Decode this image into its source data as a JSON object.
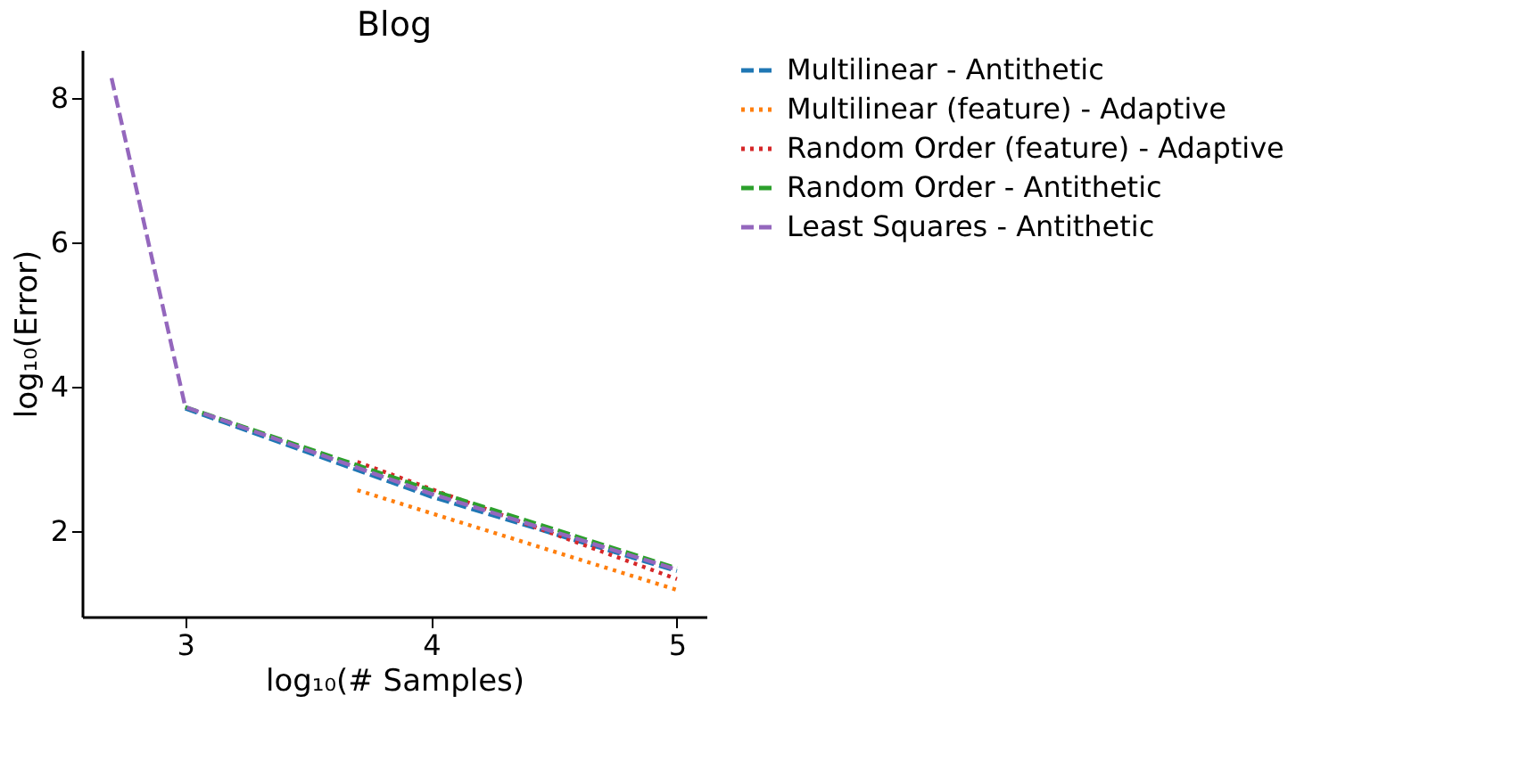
{
  "chart_data": {
    "type": "line",
    "title": "Blog",
    "xlabel": "log₁₀(# Samples)",
    "ylabel": "log₁₀(Error)",
    "xlim": [
      2.58,
      5.12
    ],
    "ylim": [
      0.82,
      8.66
    ],
    "xticks": [
      3,
      4,
      5
    ],
    "yticks": [
      2,
      4,
      6,
      8
    ],
    "grid": false,
    "legend": "right",
    "marker": "none",
    "series": [
      {
        "name": "Multilinear - Antithetic",
        "color": "#1f77b4",
        "line_style": "dashed",
        "x": [
          3,
          4,
          5
        ],
        "values": [
          3.7,
          2.48,
          1.45
        ]
      },
      {
        "name": "Multilinear (feature) - Adaptive",
        "color": "#ff7f0e",
        "line_style": "dotted",
        "x": [
          3.7,
          5
        ],
        "values": [
          2.57,
          1.19
        ]
      },
      {
        "name": "Random Order (feature) - Adaptive",
        "color": "#d62728",
        "line_style": "dotted",
        "x": [
          3.7,
          5
        ],
        "values": [
          2.96,
          1.34
        ]
      },
      {
        "name": "Random Order - Antithetic",
        "color": "#2ca02c",
        "line_style": "dashed",
        "x": [
          3,
          4,
          5
        ],
        "values": [
          3.72,
          2.57,
          1.49
        ]
      },
      {
        "name": "Least Squares - Antithetic",
        "color": "#9467bd",
        "line_style": "dashed",
        "x": [
          2.7,
          3,
          4,
          5
        ],
        "values": [
          8.27,
          3.72,
          2.52,
          1.47
        ]
      }
    ]
  }
}
